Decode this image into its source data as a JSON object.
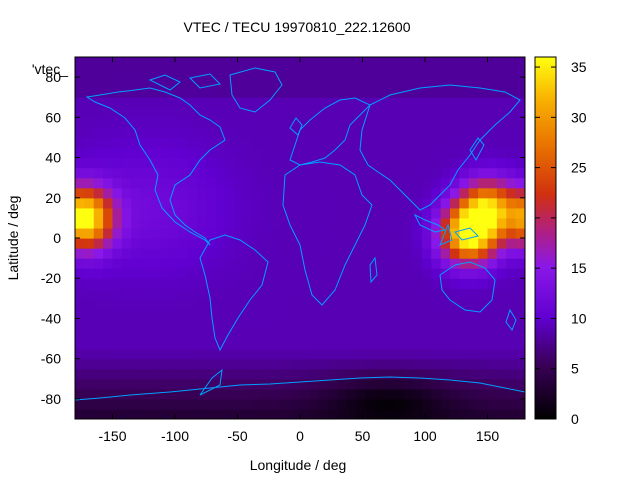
{
  "chart_data": {
    "type": "heatmap",
    "title": "VTEC / TECU 19970810_222.12600",
    "xlabel": "Longitude / deg",
    "ylabel": "Latitude / deg",
    "series_key": "'vtec_",
    "xlim": [
      -180,
      180
    ],
    "ylim": [
      -90,
      90
    ],
    "x_ticks": [
      "-150",
      "-100",
      "-50",
      "0",
      "50",
      "100",
      "150"
    ],
    "x_tick_values": [
      -150,
      -100,
      -50,
      0,
      50,
      100,
      150
    ],
    "y_ticks": [
      "-80",
      "-60",
      "-40",
      "-20",
      "0",
      "20",
      "40",
      "60",
      "80"
    ],
    "y_tick_values": [
      -80,
      -60,
      -40,
      -20,
      0,
      20,
      40,
      60,
      80
    ],
    "colorbar": {
      "range": [
        0,
        36
      ],
      "ticks": [
        "0",
        "5",
        "10",
        "15",
        "20",
        "25",
        "30",
        "35"
      ],
      "tick_values": [
        0,
        5,
        10,
        15,
        20,
        25,
        30,
        35
      ]
    },
    "grid": false,
    "overlay": "world coastlines",
    "colormap": "black-purple-red-yellow",
    "coastline_color": "#00a0ff",
    "enhancement_regions": [
      {
        "lon": -172,
        "lat": 10,
        "peak_tecu": 32
      },
      {
        "lon": 135,
        "lat": 2,
        "peak_tecu": 36
      },
      {
        "lon": 150,
        "lat": 15,
        "peak_tecu": 30
      }
    ],
    "background_tecu": 9,
    "polar_minimum": {
      "lon": 70,
      "lat": -80,
      "tecu": 1
    }
  }
}
